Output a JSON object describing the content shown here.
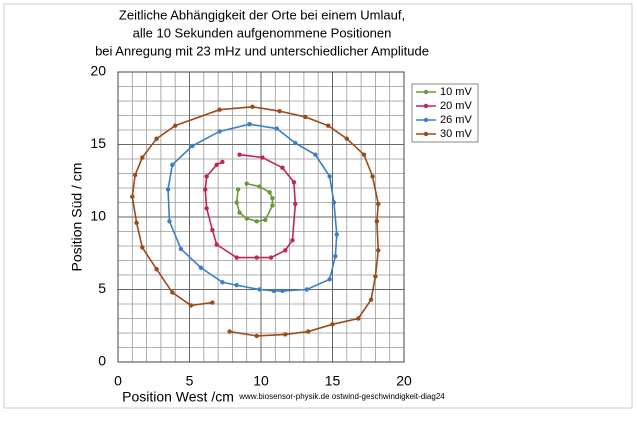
{
  "chart_data": {
    "type": "line",
    "title": [
      "Zeitliche Abhängigkeit der Orte bei einem Umlauf,",
      "alle 10 Sekunden aufgenommene Positionen",
      "bei Anregung mit 23 mHz  und unterschiedlicher Amplitude"
    ],
    "x_label": "Position West /cm",
    "y_label": "Position Süd / cm",
    "footnote": "www.biosensor-physik.de  ostwind-geschwindigkeit-diag24",
    "xlim": [
      0,
      20
    ],
    "ylim": [
      0,
      20
    ],
    "xticks": [
      0,
      5,
      10,
      15,
      20
    ],
    "yticks": [
      0,
      5,
      10,
      15,
      20
    ],
    "grid": true,
    "legend": "upper right",
    "series": [
      {
        "name": "10 mV",
        "color": "#6a9a3a",
        "x": [
          9.0,
          9.9,
          10.6,
          10.8,
          10.8,
          10.3,
          9.7,
          9.0,
          8.5,
          8.3,
          8.4
        ],
        "values": [
          12.3,
          12.1,
          11.7,
          11.3,
          10.8,
          9.8,
          9.7,
          9.9,
          10.3,
          11.0,
          11.9
        ]
      },
      {
        "name": "20 mV",
        "color": "#c0284f",
        "x": [
          8.5,
          10.1,
          11.5,
          12.3,
          12.4,
          12.2,
          11.7,
          10.7,
          9.7,
          8.3,
          6.9,
          6.6,
          6.2,
          6.1,
          6.2,
          6.9,
          7.3
        ],
        "values": [
          14.3,
          14.1,
          13.4,
          12.4,
          10.9,
          8.4,
          7.7,
          7.2,
          7.2,
          7.2,
          8.1,
          9.1,
          10.6,
          11.9,
          12.8,
          13.6,
          13.8
        ]
      },
      {
        "name": "26 mV",
        "color": "#3b7fc4",
        "x": [
          9.2,
          11.1,
          12.4,
          13.8,
          14.8,
          15.1,
          15.3,
          15.2,
          14.8,
          13.2,
          11.5,
          10.9,
          9.9,
          8.3,
          7.3,
          5.8,
          4.4,
          3.6,
          3.5,
          3.8,
          5.2,
          7.1,
          9.2
        ],
        "values": [
          16.4,
          16.1,
          15.1,
          14.3,
          12.8,
          11.0,
          8.8,
          7.3,
          5.7,
          5.0,
          4.9,
          4.9,
          5.0,
          5.3,
          5.5,
          6.5,
          7.8,
          9.7,
          11.9,
          13.6,
          14.9,
          15.9,
          16.4
        ]
      },
      {
        "name": "30 mV",
        "color": "#9c4a1a",
        "x": [
          6.6,
          5.1,
          3.8,
          2.7,
          1.7,
          1.3,
          1.0,
          1.2,
          1.7,
          2.7,
          4.0,
          7.1,
          9.4,
          11.3,
          13.1,
          14.7,
          16.0,
          17.2,
          17.8,
          18.2,
          18.1,
          18.2,
          18.0,
          17.7,
          16.8,
          15.0,
          13.3,
          11.7,
          9.7,
          7.8
        ],
        "values": [
          4.1,
          3.9,
          4.8,
          6.4,
          7.9,
          9.6,
          11.4,
          12.9,
          14.1,
          15.4,
          16.3,
          17.4,
          17.6,
          17.3,
          16.9,
          16.3,
          15.4,
          14.3,
          12.8,
          10.9,
          9.7,
          7.7,
          5.9,
          4.3,
          3.0,
          2.6,
          2.1,
          1.9,
          1.8,
          2.1
        ]
      }
    ]
  }
}
